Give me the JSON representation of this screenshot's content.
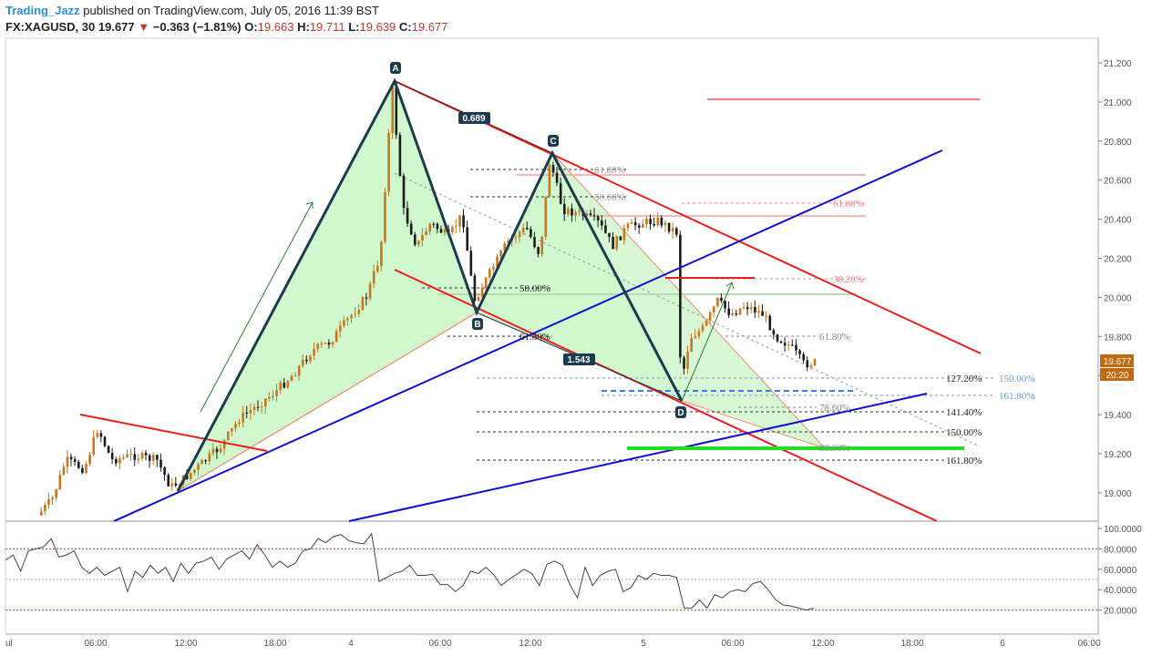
{
  "header": {
    "author": "Trading_Jazz",
    "published": "published on TradingView.com, July 05, 2016 11:39 BST",
    "symbol": "FX:XAGUSD, 30",
    "last": "19.677",
    "change": "−0.363 (−1.81%)",
    "o_label": "O:",
    "open": "19.663",
    "h_label": "H:",
    "high": "19.711",
    "l_label": "L:",
    "low": "19.639",
    "c_label": "C:",
    "close": "19.677"
  },
  "chart_data": {
    "type": "candlestick",
    "symbol": "FX:XAGUSD",
    "interval": "30",
    "price_axis": {
      "ylim": [
        18.9,
        21.3
      ],
      "ticks": [
        "21.200",
        "21.000",
        "20.800",
        "20.600",
        "20.400",
        "20.200",
        "20.000",
        "19.800",
        "19.600",
        "19.400",
        "19.200",
        "19.000"
      ],
      "last_price_label": "19.677",
      "countdown_label": "20:20"
    },
    "time_axis": {
      "ticks": [
        "ul",
        "06:00",
        "12:00",
        "18:00",
        "4",
        "06:00",
        "12:00",
        "5",
        "06:00",
        "12:00",
        "18:00",
        "6",
        "06:00"
      ]
    },
    "oscillator": {
      "ylim": [
        0,
        100
      ],
      "ticks": [
        "100.0000",
        "80.0000",
        "60.0000",
        "40.0000",
        "20.0000"
      ],
      "levels": [
        80,
        50,
        20
      ],
      "values": [
        69,
        74,
        58,
        78,
        80,
        82,
        90,
        72,
        74,
        78,
        62,
        56,
        62,
        54,
        58,
        62,
        38,
        58,
        52,
        64,
        56,
        62,
        48,
        66,
        56,
        66,
        68,
        72,
        60,
        70,
        74,
        78,
        70,
        84,
        74,
        62,
        68,
        62,
        66,
        78,
        80,
        90,
        86,
        92,
        94,
        88,
        86,
        85,
        95,
        48,
        52,
        56,
        58,
        64,
        54,
        54,
        55,
        45,
        45,
        38,
        44,
        58,
        56,
        62,
        55,
        44,
        50,
        55,
        60,
        56,
        44,
        65,
        68,
        64,
        45,
        32,
        62,
        44,
        54,
        58,
        60,
        38,
        42,
        54,
        50,
        56,
        54,
        54,
        52,
        22,
        22,
        30,
        22,
        35,
        32,
        38,
        40,
        38,
        46,
        48,
        40,
        30,
        25,
        24,
        22,
        20,
        22
      ]
    },
    "patterns": [
      {
        "name": "XABCD",
        "points": [
          "A",
          "B",
          "C",
          "D"
        ],
        "ratios": [
          "0.689",
          "1.543"
        ]
      }
    ],
    "fib_labels": [
      "61.80%",
      "50.00%",
      "61.80%",
      "38.20%",
      "50.00%",
      "61.80%",
      "61.80%",
      "127.20%",
      "150.00%",
      "161.80%",
      "78.60%",
      "141.40%",
      "150.00%",
      "88.60%",
      "161.80%"
    ]
  },
  "colors": {
    "bull": "#c8771e",
    "bear": "#1b1b1b",
    "trend_red": "#e82020",
    "trend_blue": "#1010d0",
    "pattern_fill": "#b8f2b3",
    "pattern_line": "#1c3b4e",
    "target_green": "#22dd22",
    "price_tag": "#c16a10"
  }
}
